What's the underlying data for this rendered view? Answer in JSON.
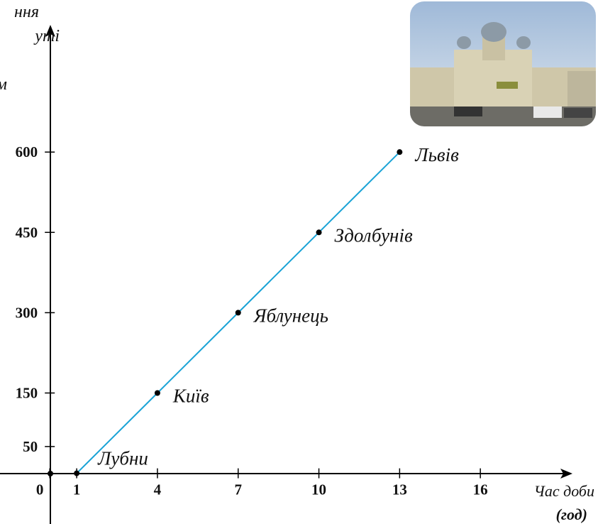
{
  "chart_data": {
    "type": "line",
    "y_label": [
      "ння",
      "уті",
      "м"
    ],
    "x_label": [
      "Час доби",
      "(год)"
    ],
    "x": [
      1,
      4,
      7,
      10,
      13
    ],
    "values": [
      0,
      150,
      300,
      450,
      600
    ],
    "point_labels": [
      "Лубни",
      "Київ",
      "Яблунець",
      "Здолбунів",
      "Львів"
    ],
    "color": "#1aa3d6",
    "xlim": [
      -1.85,
      19.37
    ],
    "xticks": [
      0,
      1,
      4,
      7,
      10,
      13,
      16
    ],
    "ylim": [
      -94.7,
      831
    ],
    "yticks": [
      50,
      150,
      300,
      450,
      600
    ]
  }
}
